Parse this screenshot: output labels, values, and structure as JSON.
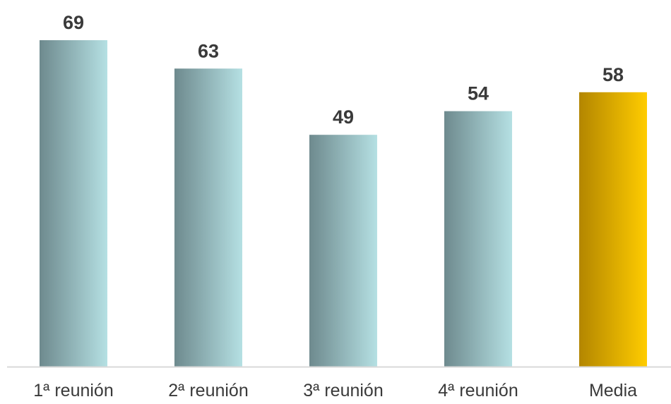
{
  "chart_data": {
    "type": "bar",
    "title": "",
    "xlabel": "",
    "ylabel": "",
    "categories": [
      "1ª reunión",
      "2ª reunión",
      "3ª reunión",
      "4ª reunión",
      "Media"
    ],
    "values": [
      69,
      63,
      49,
      54,
      58
    ],
    "ylim": [
      0,
      69
    ],
    "grid": false,
    "legend": "none",
    "highlight_category": "Media",
    "colors": {
      "bar_dark": "#6e8a8e",
      "bar_light": "#b5e0e3",
      "highlight_dark": "#b38600",
      "highlight_light": "#ffcc00",
      "axis": "#d9d9d9",
      "text": "#3a3a3a"
    }
  }
}
